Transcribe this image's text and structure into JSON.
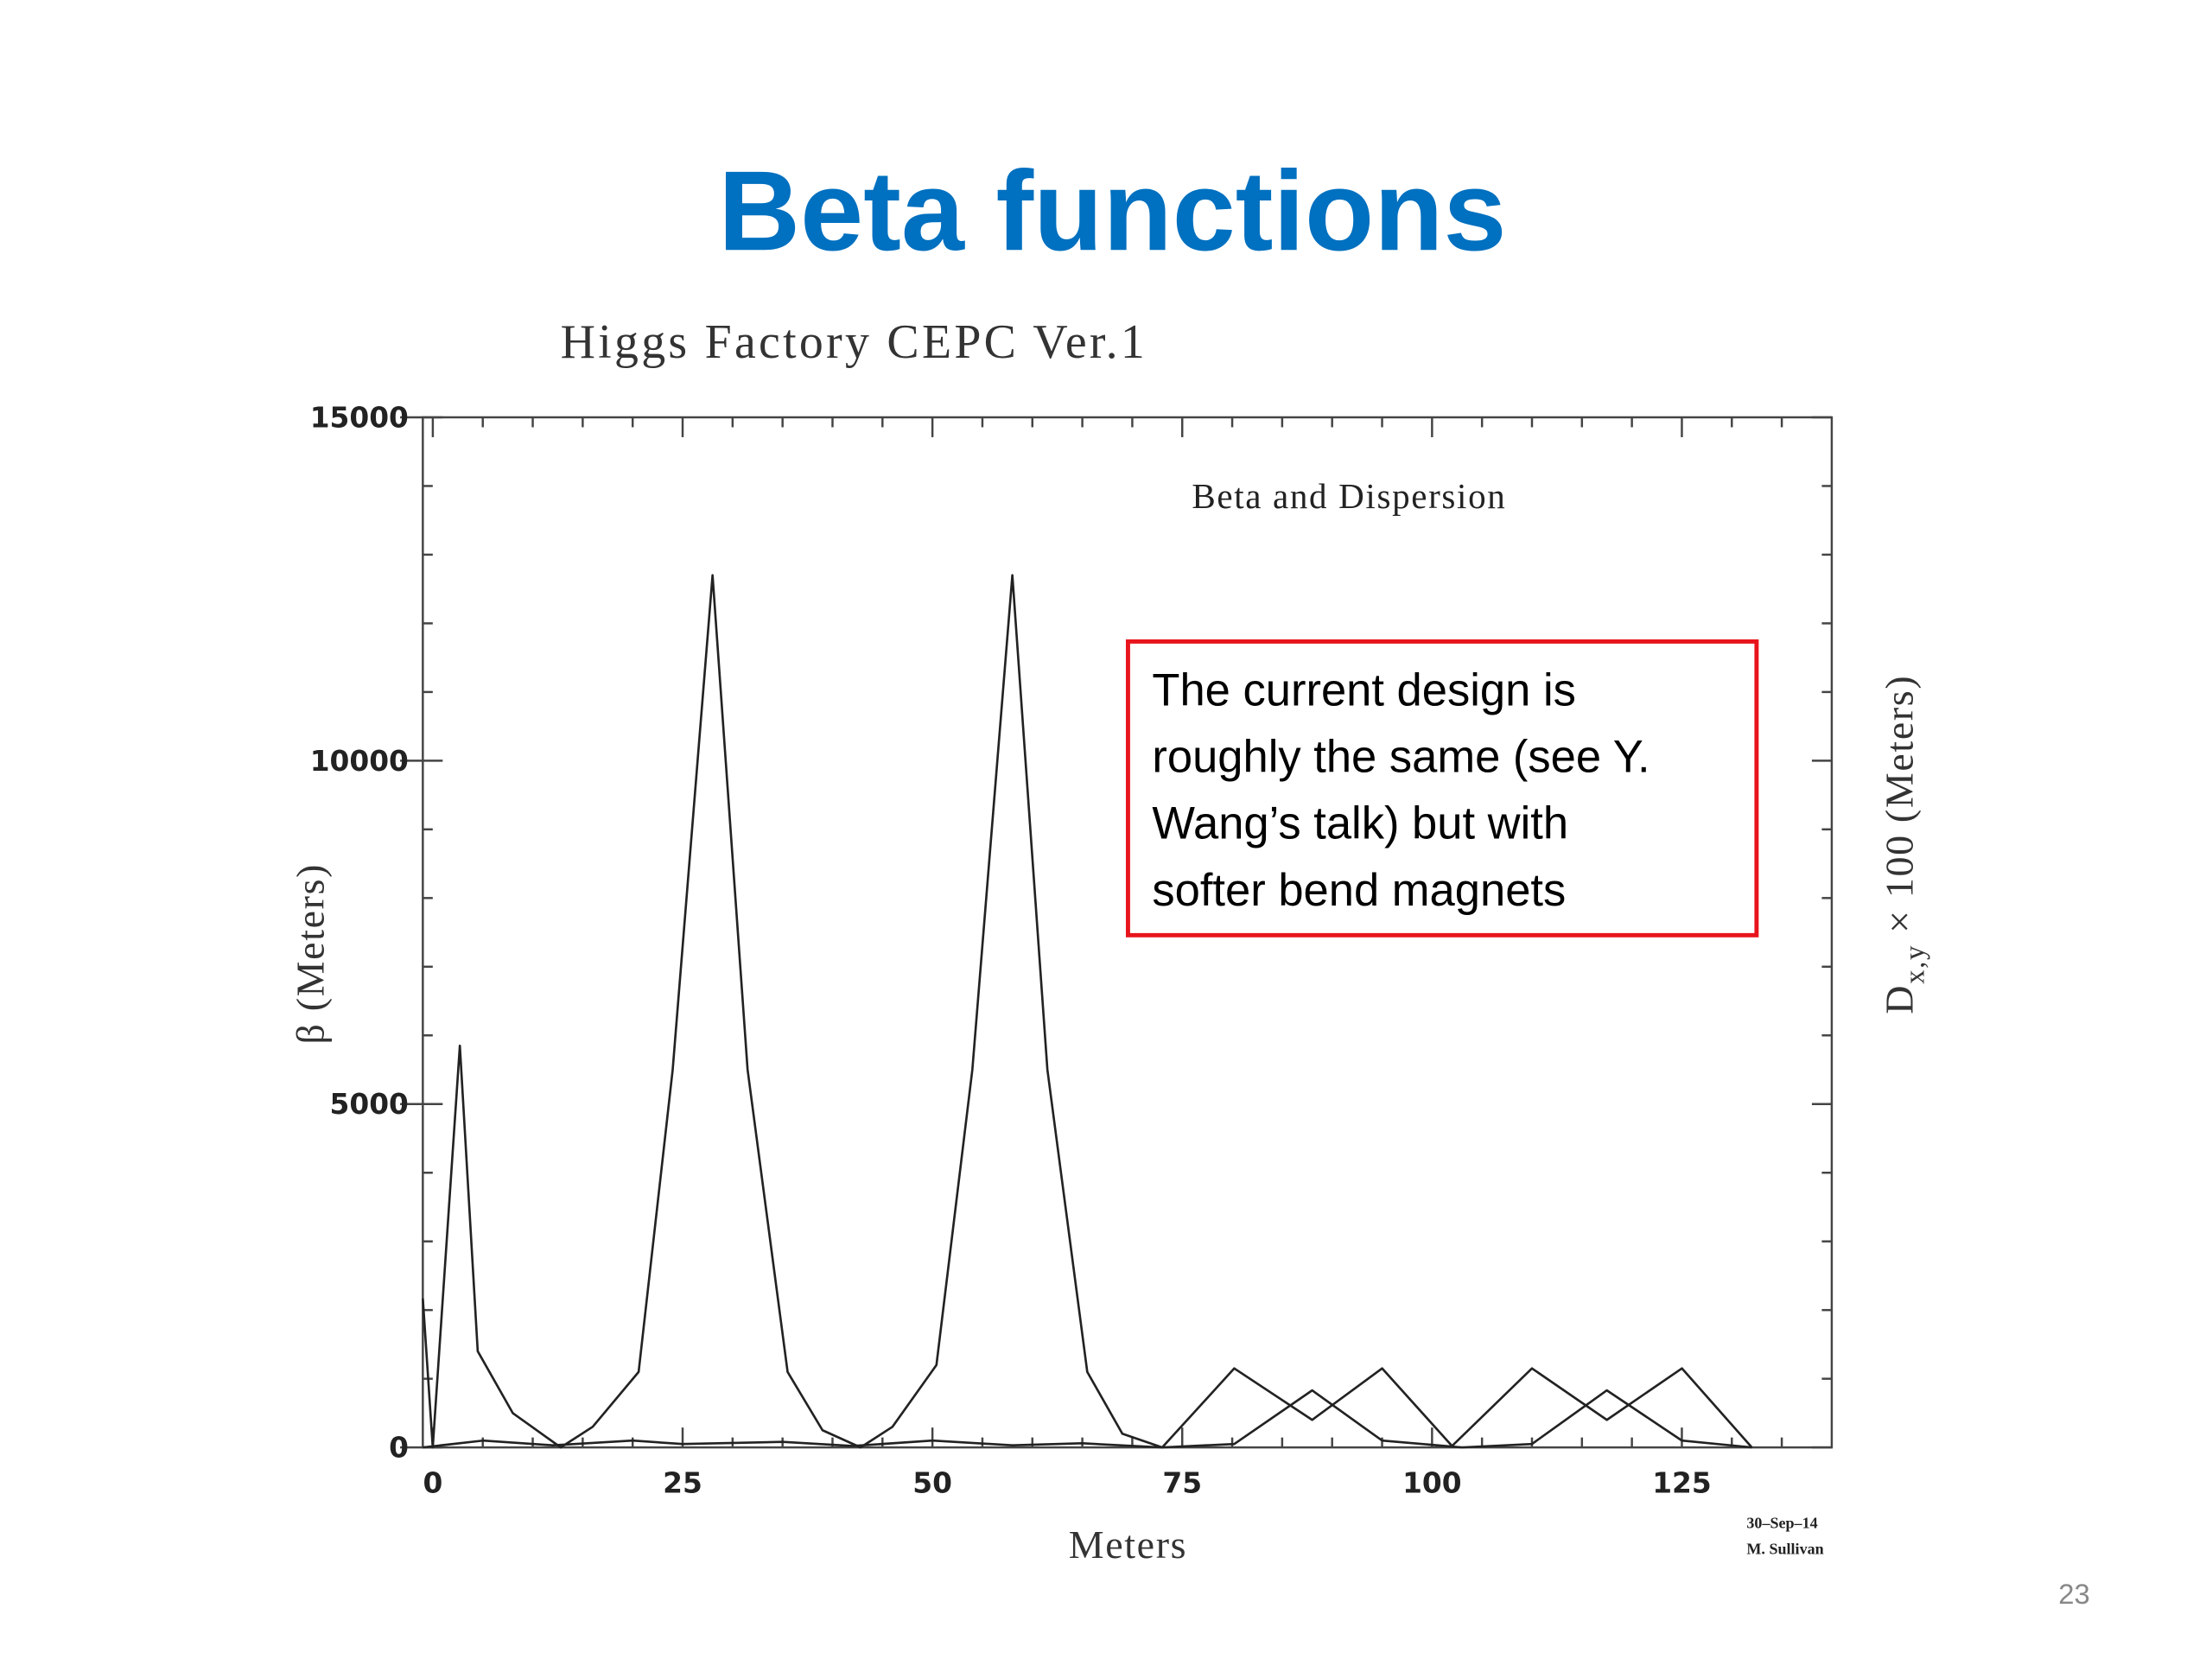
{
  "header": {
    "title": "Beta functions"
  },
  "chart_data": {
    "type": "line",
    "title": "Higgs Factory CEPC Ver.1",
    "subtitle": "Beta and Dispersion",
    "xlabel": "Meters",
    "ylabel": "β (Meters)",
    "y2label_base": "D",
    "y2label_sub": "x,y",
    "y2label_rest": " × 100 (Meters)",
    "xlim": [
      -1,
      140
    ],
    "ylim": [
      0,
      15000
    ],
    "xticks": [
      0,
      25,
      50,
      75,
      100,
      125
    ],
    "yticks": [
      0,
      5000,
      10000,
      15000
    ],
    "minor_ticks": true,
    "color": "#222222",
    "series": [
      {
        "color": "#222222",
        "x": [
          -1,
          0,
          2.7,
          4.5,
          8,
          12.8,
          16,
          20.6,
          24,
          28,
          31.5,
          35.5,
          39,
          42.8,
          46,
          50.4,
          54,
          58,
          61.5,
          65.5,
          69,
          73,
          80.2,
          88,
          95,
          102,
          110,
          117.5,
          125,
          132
        ],
        "values": [
          2170,
          0,
          5850,
          1400,
          500,
          0,
          300,
          1100,
          5500,
          12700,
          5500,
          1100,
          250,
          0,
          300,
          1200,
          5500,
          12700,
          5500,
          1100,
          200,
          0,
          1150,
          400,
          1150,
          20,
          1150,
          400,
          1150,
          0
        ]
      },
      {
        "color": "#222222",
        "x": [
          -1,
          5,
          12,
          20,
          25,
          35,
          42,
          50,
          58,
          65,
          73,
          80.2,
          88,
          95,
          103,
          110,
          117.5,
          125,
          132
        ],
        "values": [
          0,
          100,
          30,
          100,
          50,
          80,
          20,
          100,
          30,
          60,
          0,
          50,
          830,
          100,
          0,
          50,
          830,
          100,
          0
        ]
      }
    ],
    "annotation": [
      "The current design is",
      "roughly the same (see Y.",
      "Wang’s talk) but with",
      "softer bend magnets"
    ],
    "credit": [
      "30–Sep–14",
      "M. Sullivan"
    ]
  },
  "footer": {
    "page_number": "23"
  }
}
